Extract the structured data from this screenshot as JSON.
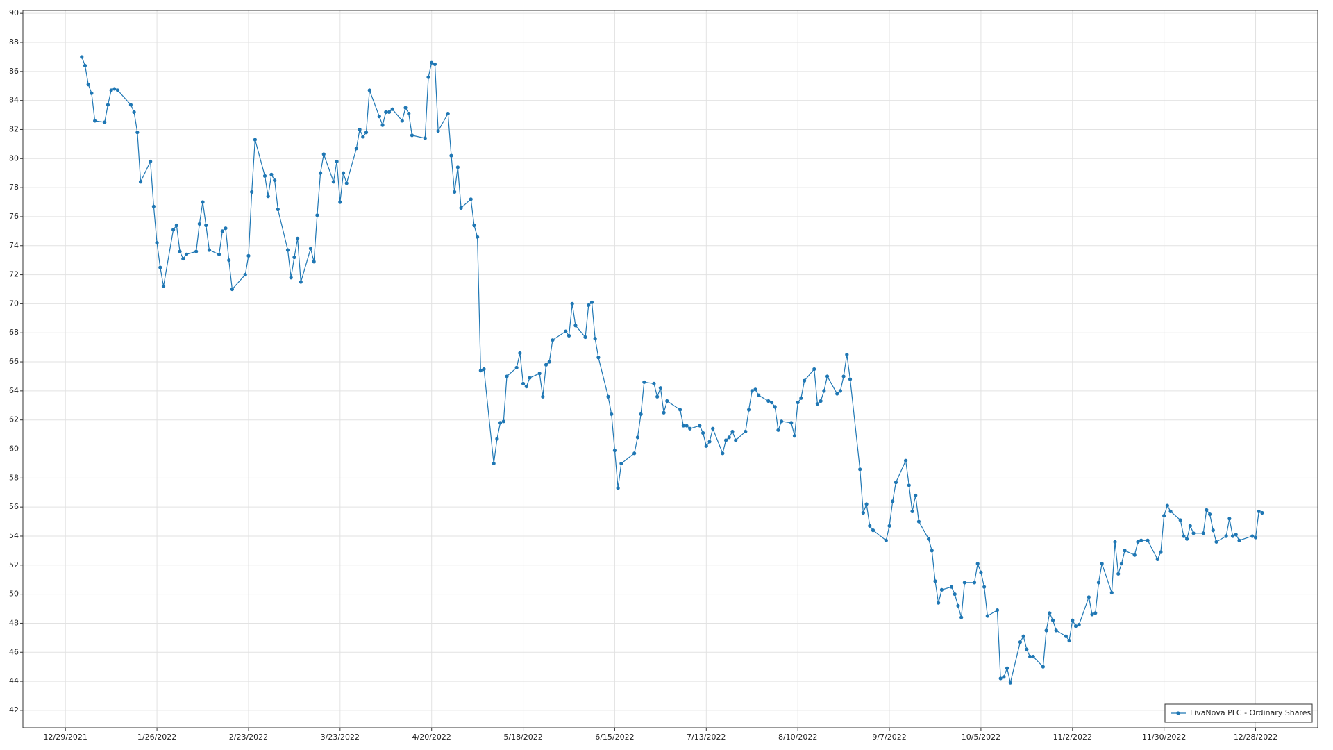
{
  "chart_data": {
    "type": "line",
    "legend": "lower right",
    "grid": true,
    "xlim": [
      "2021-12-16",
      "2023-01-16"
    ],
    "ylim": [
      40.8,
      90.2
    ],
    "yticks": [
      42,
      44,
      46,
      48,
      50,
      52,
      54,
      56,
      58,
      60,
      62,
      64,
      66,
      68,
      70,
      72,
      74,
      76,
      78,
      80,
      82,
      84,
      86,
      88,
      90
    ],
    "xticks": [
      {
        "value": "2021-12-29",
        "label": "12/29/2021"
      },
      {
        "value": "2022-01-26",
        "label": "1/26/2022"
      },
      {
        "value": "2022-02-23",
        "label": "2/23/2022"
      },
      {
        "value": "2022-03-23",
        "label": "3/23/2022"
      },
      {
        "value": "2022-04-20",
        "label": "4/20/2022"
      },
      {
        "value": "2022-05-18",
        "label": "5/18/2022"
      },
      {
        "value": "2022-06-15",
        "label": "6/15/2022"
      },
      {
        "value": "2022-07-13",
        "label": "7/13/2022"
      },
      {
        "value": "2022-08-10",
        "label": "8/10/2022"
      },
      {
        "value": "2022-09-07",
        "label": "9/7/2022"
      },
      {
        "value": "2022-10-05",
        "label": "10/5/2022"
      },
      {
        "value": "2022-11-02",
        "label": "11/2/2022"
      },
      {
        "value": "2022-11-30",
        "label": "11/30/2022"
      },
      {
        "value": "2022-12-28",
        "label": "12/28/2022"
      }
    ],
    "x": [
      "2022-01-03",
      "2022-01-04",
      "2022-01-05",
      "2022-01-06",
      "2022-01-07",
      "2022-01-10",
      "2022-01-11",
      "2022-01-12",
      "2022-01-13",
      "2022-01-14",
      "2022-01-18",
      "2022-01-19",
      "2022-01-20",
      "2022-01-21",
      "2022-01-24",
      "2022-01-25",
      "2022-01-26",
      "2022-01-27",
      "2022-01-28",
      "2022-01-31",
      "2022-02-01",
      "2022-02-02",
      "2022-02-03",
      "2022-02-04",
      "2022-02-07",
      "2022-02-08",
      "2022-02-09",
      "2022-02-10",
      "2022-02-11",
      "2022-02-14",
      "2022-02-15",
      "2022-02-16",
      "2022-02-17",
      "2022-02-18",
      "2022-02-22",
      "2022-02-23",
      "2022-02-24",
      "2022-02-25",
      "2022-02-28",
      "2022-03-01",
      "2022-03-02",
      "2022-03-03",
      "2022-03-04",
      "2022-03-07",
      "2022-03-08",
      "2022-03-09",
      "2022-03-10",
      "2022-03-11",
      "2022-03-14",
      "2022-03-15",
      "2022-03-16",
      "2022-03-17",
      "2022-03-18",
      "2022-03-21",
      "2022-03-22",
      "2022-03-23",
      "2022-03-24",
      "2022-03-25",
      "2022-03-28",
      "2022-03-29",
      "2022-03-30",
      "2022-03-31",
      "2022-04-01",
      "2022-04-04",
      "2022-04-05",
      "2022-04-06",
      "2022-04-07",
      "2022-04-08",
      "2022-04-11",
      "2022-04-12",
      "2022-04-13",
      "2022-04-14",
      "2022-04-18",
      "2022-04-19",
      "2022-04-20",
      "2022-04-21",
      "2022-04-22",
      "2022-04-25",
      "2022-04-26",
      "2022-04-27",
      "2022-04-28",
      "2022-04-29",
      "2022-05-02",
      "2022-05-03",
      "2022-05-04",
      "2022-05-05",
      "2022-05-06",
      "2022-05-09",
      "2022-05-10",
      "2022-05-11",
      "2022-05-12",
      "2022-05-13",
      "2022-05-16",
      "2022-05-17",
      "2022-05-18",
      "2022-05-19",
      "2022-05-20",
      "2022-05-23",
      "2022-05-24",
      "2022-05-25",
      "2022-05-26",
      "2022-05-27",
      "2022-05-31",
      "2022-06-01",
      "2022-06-02",
      "2022-06-03",
      "2022-06-06",
      "2022-06-07",
      "2022-06-08",
      "2022-06-09",
      "2022-06-10",
      "2022-06-13",
      "2022-06-14",
      "2022-06-15",
      "2022-06-16",
      "2022-06-17",
      "2022-06-21",
      "2022-06-22",
      "2022-06-23",
      "2022-06-24",
      "2022-06-27",
      "2022-06-28",
      "2022-06-29",
      "2022-06-30",
      "2022-07-01",
      "2022-07-05",
      "2022-07-06",
      "2022-07-07",
      "2022-07-08",
      "2022-07-11",
      "2022-07-12",
      "2022-07-13",
      "2022-07-14",
      "2022-07-15",
      "2022-07-18",
      "2022-07-19",
      "2022-07-20",
      "2022-07-21",
      "2022-07-22",
      "2022-07-25",
      "2022-07-26",
      "2022-07-27",
      "2022-07-28",
      "2022-07-29",
      "2022-08-01",
      "2022-08-02",
      "2022-08-03",
      "2022-08-04",
      "2022-08-05",
      "2022-08-08",
      "2022-08-09",
      "2022-08-10",
      "2022-08-11",
      "2022-08-12",
      "2022-08-15",
      "2022-08-16",
      "2022-08-17",
      "2022-08-18",
      "2022-08-19",
      "2022-08-22",
      "2022-08-23",
      "2022-08-24",
      "2022-08-25",
      "2022-08-26",
      "2022-08-29",
      "2022-08-30",
      "2022-08-31",
      "2022-09-01",
      "2022-09-02",
      "2022-09-06",
      "2022-09-07",
      "2022-09-08",
      "2022-09-09",
      "2022-09-12",
      "2022-09-13",
      "2022-09-14",
      "2022-09-15",
      "2022-09-16",
      "2022-09-19",
      "2022-09-20",
      "2022-09-21",
      "2022-09-22",
      "2022-09-23",
      "2022-09-26",
      "2022-09-27",
      "2022-09-28",
      "2022-09-29",
      "2022-09-30",
      "2022-10-03",
      "2022-10-04",
      "2022-10-05",
      "2022-10-06",
      "2022-10-07",
      "2022-10-10",
      "2022-10-11",
      "2022-10-12",
      "2022-10-13",
      "2022-10-14",
      "2022-10-17",
      "2022-10-18",
      "2022-10-19",
      "2022-10-20",
      "2022-10-21",
      "2022-10-24",
      "2022-10-25",
      "2022-10-26",
      "2022-10-27",
      "2022-10-28",
      "2022-10-31",
      "2022-11-01",
      "2022-11-02",
      "2022-11-03",
      "2022-11-04",
      "2022-11-07",
      "2022-11-08",
      "2022-11-09",
      "2022-11-10",
      "2022-11-11",
      "2022-11-14",
      "2022-11-15",
      "2022-11-16",
      "2022-11-17",
      "2022-11-18",
      "2022-11-21",
      "2022-11-22",
      "2022-11-23",
      "2022-11-25",
      "2022-11-28",
      "2022-11-29",
      "2022-11-30",
      "2022-12-01",
      "2022-12-02",
      "2022-12-05",
      "2022-12-06",
      "2022-12-07",
      "2022-12-08",
      "2022-12-09",
      "2022-12-12",
      "2022-12-13",
      "2022-12-14",
      "2022-12-15",
      "2022-12-16",
      "2022-12-19",
      "2022-12-20",
      "2022-12-21",
      "2022-12-22",
      "2022-12-23",
      "2022-12-27",
      "2022-12-28",
      "2022-12-29",
      "2022-12-30"
    ],
    "series": [
      {
        "name": "LivaNova PLC - Ordinary Shares",
        "color": "#1f77b4",
        "values": [
          87.0,
          86.4,
          85.1,
          84.5,
          82.6,
          82.5,
          83.7,
          84.7,
          84.8,
          84.7,
          83.7,
          83.2,
          81.8,
          78.4,
          79.8,
          76.7,
          74.2,
          72.5,
          71.2,
          75.1,
          75.4,
          73.6,
          73.1,
          73.4,
          73.6,
          75.5,
          77.0,
          75.4,
          73.7,
          73.4,
          75.0,
          75.2,
          73.0,
          71.0,
          72.0,
          73.3,
          77.7,
          81.3,
          78.8,
          77.4,
          78.9,
          78.5,
          76.5,
          73.7,
          71.8,
          73.2,
          74.5,
          71.5,
          73.8,
          72.9,
          76.1,
          79.0,
          80.3,
          78.4,
          79.8,
          77.0,
          79.0,
          78.3,
          80.7,
          82.0,
          81.5,
          81.8,
          84.7,
          82.9,
          82.3,
          83.2,
          83.2,
          83.4,
          82.6,
          83.5,
          83.1,
          81.6,
          81.4,
          85.6,
          86.6,
          86.5,
          81.9,
          83.1,
          80.2,
          77.7,
          79.4,
          76.6,
          77.2,
          75.4,
          74.6,
          65.4,
          65.5,
          59.0,
          60.7,
          61.8,
          61.9,
          65.0,
          65.6,
          66.6,
          64.5,
          64.3,
          64.9,
          65.2,
          63.6,
          65.8,
          66.0,
          67.5,
          68.1,
          67.8,
          70.0,
          68.5,
          67.7,
          69.9,
          70.1,
          67.6,
          66.3,
          63.6,
          62.4,
          59.9,
          57.3,
          59.0,
          59.7,
          60.8,
          62.4,
          64.6,
          64.5,
          63.6,
          64.2,
          62.5,
          63.3,
          62.7,
          61.6,
          61.6,
          61.4,
          61.6,
          61.1,
          60.2,
          60.5,
          61.4,
          59.7,
          60.6,
          60.8,
          61.2,
          60.6,
          61.2,
          62.7,
          64.0,
          64.1,
          63.7,
          63.3,
          63.2,
          62.9,
          61.3,
          61.9,
          61.8,
          60.9,
          63.2,
          63.5,
          64.7,
          65.5,
          63.1,
          63.3,
          64.0,
          65.0,
          63.8,
          64.0,
          65.0,
          66.5,
          64.8,
          58.6,
          55.6,
          56.2,
          54.7,
          54.4,
          53.7,
          54.7,
          56.4,
          57.7,
          59.2,
          57.5,
          55.7,
          56.8,
          55.0,
          53.8,
          53.0,
          50.9,
          49.4,
          50.3,
          50.5,
          50.0,
          49.2,
          48.4,
          50.8,
          50.8,
          52.1,
          51.5,
          50.5,
          48.5,
          48.9,
          44.2,
          44.3,
          44.9,
          43.9,
          46.7,
          47.1,
          46.2,
          45.7,
          45.7,
          45.0,
          47.5,
          48.7,
          48.2,
          47.5,
          47.1,
          46.8,
          48.2,
          47.8,
          47.9,
          49.8,
          48.6,
          48.7,
          50.8,
          52.1,
          50.1,
          53.6,
          51.4,
          52.1,
          53.0,
          52.7,
          53.6,
          53.7,
          53.7,
          52.4,
          52.9,
          55.4,
          56.1,
          55.7,
          55.1,
          54.0,
          53.8,
          54.7,
          54.2,
          54.2,
          55.8,
          55.5,
          54.4,
          53.6,
          54.0,
          55.2,
          54.0,
          54.1,
          53.7,
          54.0,
          53.9,
          55.7,
          55.6
        ]
      }
    ]
  }
}
